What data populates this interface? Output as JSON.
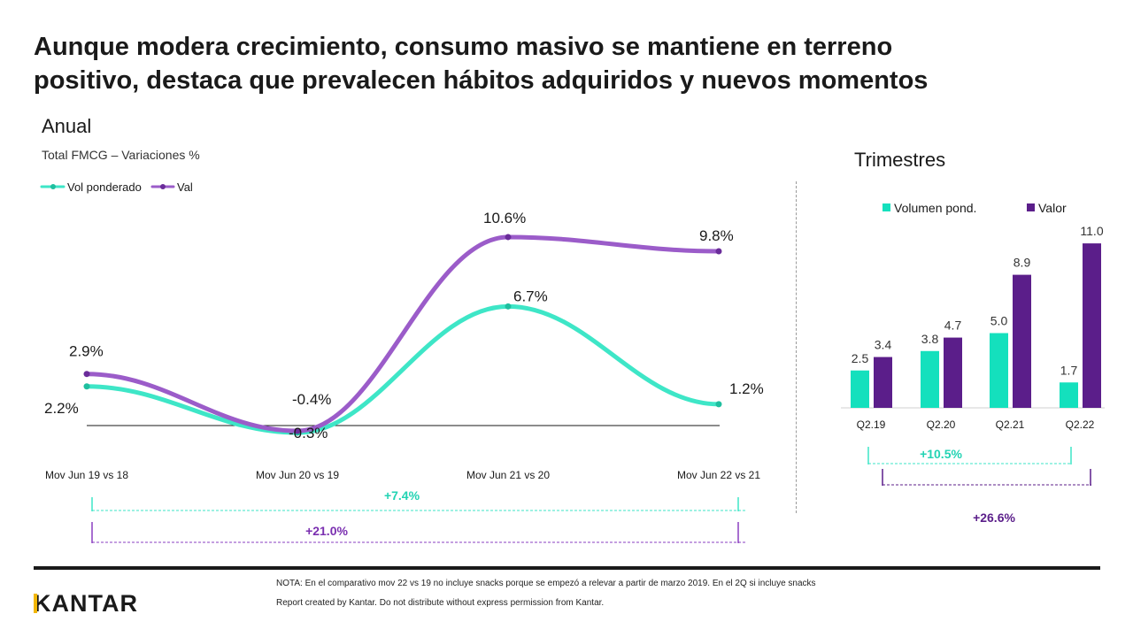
{
  "header": {
    "title_line1": "Aunque modera crecimiento, consumo masivo se mantiene en terreno",
    "title_line2": "positivo, destaca que prevalecen hábitos adquiridos y nuevos momentos"
  },
  "colors": {
    "vol": "#3ee6c7",
    "val": "#9b5cc9",
    "bar_vol": "#14e0bd",
    "bar_val": "#5b1e8a",
    "text": "#1a1a1a"
  },
  "chart_data": [
    {
      "type": "line",
      "title": "Anual",
      "subtitle": "Total FMCG – Variaciones %",
      "categories": [
        "Mov Jun 19 vs 18",
        "Mov Jun 20 vs 19",
        "Mov Jun 21 vs 20",
        "Mov Jun 22 vs 21"
      ],
      "series": [
        {
          "name": "Vol ponderado",
          "values": [
            2.2,
            -0.4,
            6.7,
            1.2
          ],
          "labels": [
            "2.2%",
            "-0.4%",
            "6.7%",
            "1.2%"
          ]
        },
        {
          "name": "Val",
          "values": [
            2.9,
            -0.3,
            10.6,
            9.8
          ],
          "labels": [
            "2.9%",
            "-0.3%",
            "10.6%",
            "9.8%"
          ]
        }
      ],
      "legend": "top-left",
      "grid": false,
      "brackets": [
        {
          "label": "+7.4%",
          "series": "Vol ponderado"
        },
        {
          "label": "+21.0%",
          "series": "Val"
        }
      ]
    },
    {
      "type": "bar",
      "title": "Trimestres",
      "categories": [
        "Q2.19",
        "Q2.20",
        "Q2.21",
        "Q2.22"
      ],
      "series": [
        {
          "name": "Volumen pond.",
          "values": [
            2.5,
            3.8,
            5.0,
            1.7
          ],
          "labels": [
            "2.5",
            "3.8",
            "5.0",
            "1.7"
          ]
        },
        {
          "name": "Valor",
          "values": [
            3.4,
            4.7,
            8.9,
            11.0
          ],
          "labels": [
            "3.4",
            "4.7",
            "8.9",
            "11.0"
          ]
        }
      ],
      "legend": "top",
      "grid": false,
      "brackets": [
        {
          "label": "+10.5%",
          "series": "Volumen pond."
        },
        {
          "label": "+26.6%",
          "series": "Valor"
        }
      ]
    }
  ],
  "footer": {
    "logo": "KANTAR",
    "note": "NOTA:  En  el comparativo mov  22 vs 19 no incluye snacks porque se empezó  a relevar a partir de marzo 2019.  En  el 2Q  si incluye snacks",
    "credit": "Report created by Kantar.  Do  not distribute without express permission from Kantar."
  }
}
